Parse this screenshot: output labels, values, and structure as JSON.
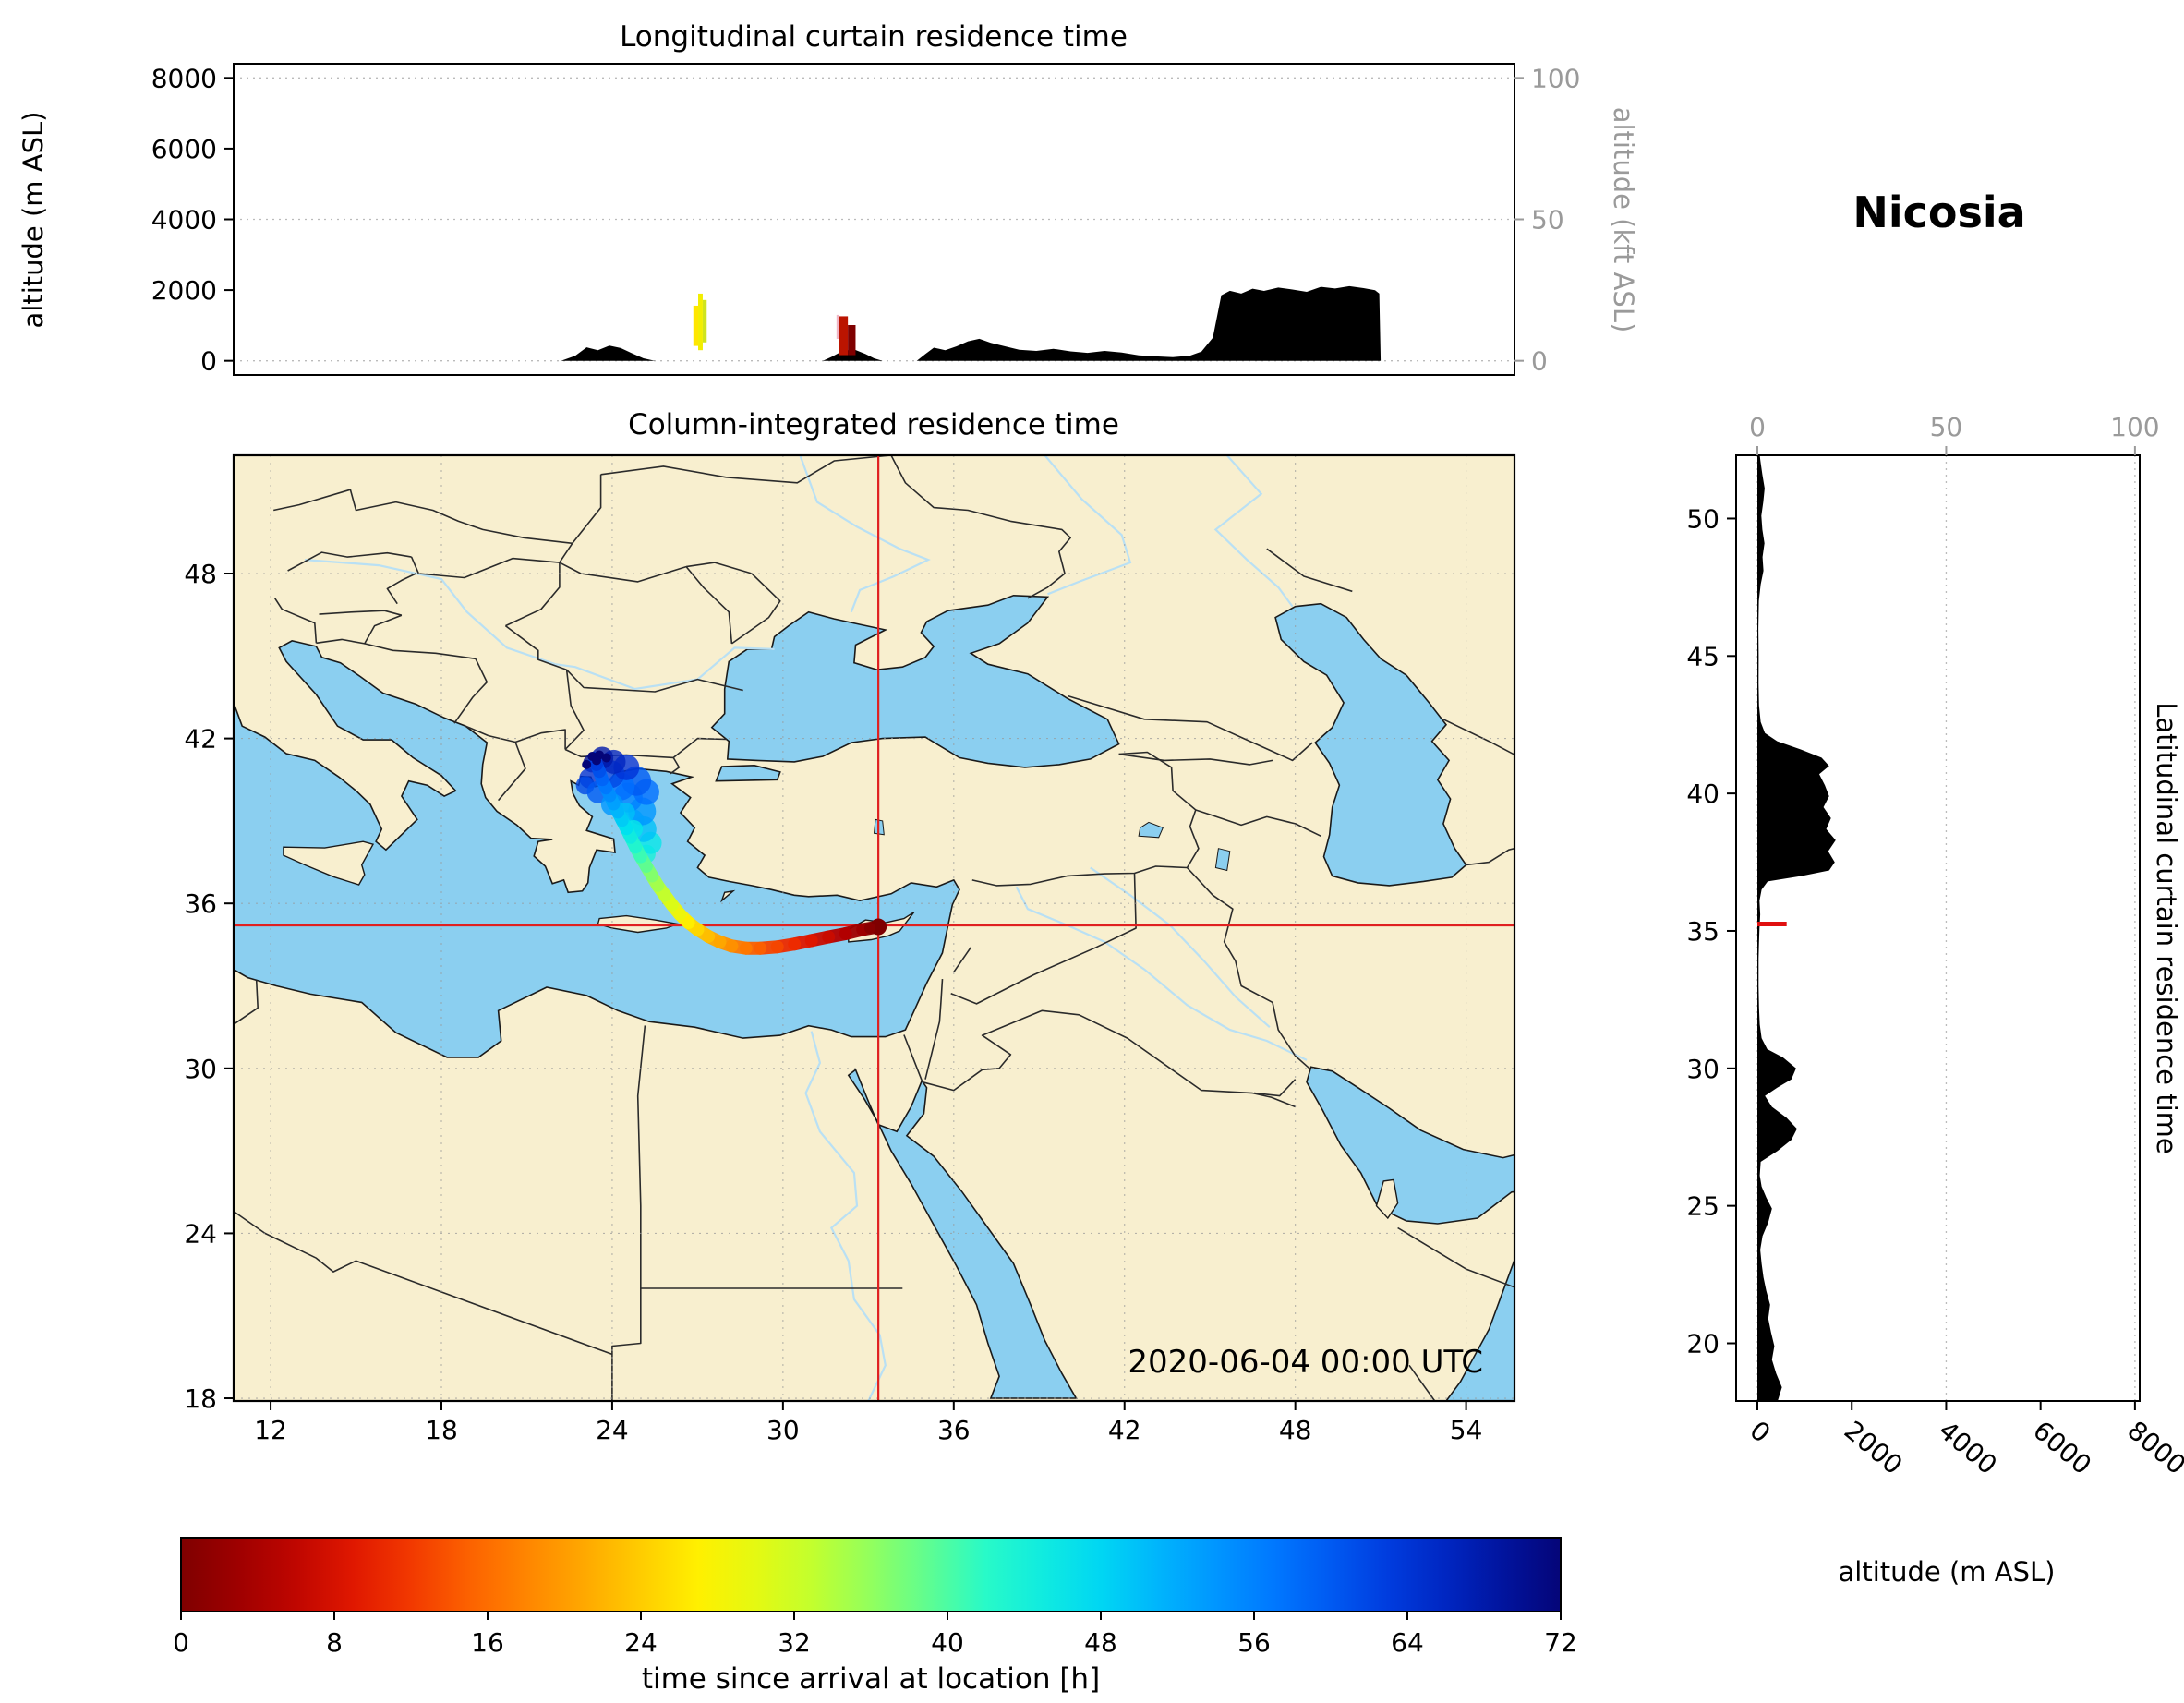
{
  "station": {
    "name": "Nicosia"
  },
  "datetime_label": "2020-06-04 00:00 UTC",
  "panels": {
    "longitudinal": {
      "title": "Longitudinal curtain residence time",
      "ylabel_left": "altitude (m ASL)",
      "ylabel_right": "altitude (kft ASL)",
      "yticks_left": [
        0,
        2000,
        4000,
        6000,
        8000
      ],
      "yticks_right": [
        0,
        50,
        100
      ]
    },
    "map": {
      "title": "Column-integrated residence time",
      "xticks": [
        12,
        18,
        24,
        30,
        36,
        42,
        48,
        54
      ],
      "yticks": [
        18,
        24,
        30,
        36,
        42,
        48
      ],
      "extent": {
        "lon": [
          10.7,
          55.7
        ],
        "lat": [
          17.9,
          52.3
        ]
      }
    },
    "latitudinal": {
      "title": "Latitudinal curtain residence time",
      "xlabel": "altitude (m ASL)",
      "xticks_bottom": [
        0,
        2000,
        4000,
        6000,
        8000
      ],
      "xticks_top": [
        0,
        50,
        100
      ],
      "yticks": [
        20,
        25,
        30,
        35,
        40,
        45,
        50
      ]
    },
    "colorbar": {
      "label": "time since arrival at location [h]",
      "ticks": [
        0,
        8,
        16,
        24,
        32,
        40,
        48,
        56,
        64,
        72
      ],
      "min": 0,
      "max": 72
    }
  },
  "chart_data": [
    {
      "name": "colormap",
      "type": "colorbar",
      "min": 0,
      "max": 72,
      "stops": [
        [
          0,
          127,
          0,
          0
        ],
        [
          5,
          180,
          0,
          0
        ],
        [
          10,
          235,
          30,
          0
        ],
        [
          16,
          255,
          110,
          0
        ],
        [
          22,
          255,
          180,
          0
        ],
        [
          27,
          255,
          240,
          0
        ],
        [
          32,
          210,
          255,
          30
        ],
        [
          37,
          130,
          255,
          110
        ],
        [
          42,
          40,
          250,
          200
        ],
        [
          47,
          0,
          225,
          240
        ],
        [
          52,
          0,
          170,
          255
        ],
        [
          58,
          0,
          110,
          255
        ],
        [
          64,
          0,
          50,
          215
        ],
        [
          68,
          0,
          25,
          170
        ],
        [
          72,
          5,
          5,
          120
        ]
      ]
    },
    {
      "name": "trajectory",
      "type": "scatter",
      "x": "longitude_deg",
      "y": "latitude_deg",
      "value": "time_since_arrival_h",
      "points": [
        [
          33.35,
          35.15,
          0
        ],
        [
          32.8,
          35.05,
          2
        ],
        [
          32.2,
          34.9,
          4
        ],
        [
          31.6,
          34.78,
          6
        ],
        [
          31.0,
          34.65,
          8
        ],
        [
          30.4,
          34.52,
          10
        ],
        [
          29.8,
          34.42,
          12
        ],
        [
          29.2,
          34.37,
          14
        ],
        [
          28.7,
          34.37,
          16
        ],
        [
          28.2,
          34.45,
          18
        ],
        [
          27.78,
          34.6,
          20
        ],
        [
          27.38,
          34.8,
          22
        ],
        [
          27.0,
          35.05,
          24
        ],
        [
          26.68,
          35.3,
          26
        ],
        [
          26.38,
          35.6,
          28
        ],
        [
          26.1,
          35.95,
          30
        ],
        [
          25.85,
          36.3,
          32
        ],
        [
          25.6,
          36.65,
          34
        ],
        [
          25.4,
          37.0,
          36
        ],
        [
          25.2,
          37.35,
          38
        ],
        [
          25.0,
          37.7,
          40
        ],
        [
          24.82,
          38.05,
          42
        ],
        [
          24.65,
          38.4,
          44
        ],
        [
          24.5,
          38.72,
          46
        ],
        [
          24.35,
          39.02,
          48
        ],
        [
          24.2,
          39.32,
          50
        ],
        [
          24.05,
          39.62,
          52
        ],
        [
          23.92,
          39.92,
          54
        ],
        [
          23.78,
          40.2,
          56
        ],
        [
          23.65,
          40.5,
          58
        ],
        [
          23.55,
          40.8,
          60
        ],
        [
          23.45,
          41.05,
          62
        ],
        [
          23.38,
          41.28,
          64
        ]
      ],
      "spread": [
        [
          25.2,
          37.8,
          44,
          10
        ],
        [
          25.35,
          38.2,
          46,
          12
        ],
        [
          25.1,
          38.7,
          50,
          14
        ],
        [
          24.7,
          39.0,
          50,
          13
        ],
        [
          25.05,
          39.35,
          54,
          15
        ],
        [
          24.55,
          39.85,
          56,
          16
        ],
        [
          25.2,
          40.05,
          58,
          14
        ],
        [
          24.85,
          40.45,
          60,
          16
        ],
        [
          24.3,
          40.25,
          58,
          15
        ],
        [
          23.95,
          40.7,
          62,
          15
        ],
        [
          24.5,
          40.95,
          64,
          14
        ],
        [
          24.05,
          41.15,
          66,
          13
        ],
        [
          23.65,
          41.3,
          68,
          12
        ],
        [
          23.3,
          41.1,
          70,
          10
        ],
        [
          23.2,
          40.55,
          64,
          11
        ],
        [
          23.05,
          40.3,
          62,
          10
        ],
        [
          23.5,
          40.05,
          60,
          12
        ],
        [
          24.0,
          39.6,
          54,
          12
        ],
        [
          24.45,
          39.3,
          50,
          11
        ],
        [
          24.75,
          38.7,
          46,
          10
        ]
      ],
      "extra_dots": [
        [
          23.3,
          41.35
        ],
        [
          23.55,
          41.4
        ],
        [
          23.1,
          41.05
        ],
        [
          23.8,
          41.3
        ],
        [
          23.45,
          41.2
        ]
      ],
      "crosshair": {
        "lon": 33.35,
        "lat": 35.2,
        "color": "#e02020"
      }
    },
    {
      "name": "longitudinal_curtain",
      "type": "area",
      "xlabel": "longitude_deg",
      "ylabel": "altitude_m",
      "xlim": [
        10.7,
        55.7
      ],
      "ylim": [
        -400,
        8400
      ],
      "profile": [
        [
          10.7,
          0
        ],
        [
          22.2,
          0
        ],
        [
          22.7,
          140
        ],
        [
          23.1,
          380
        ],
        [
          23.5,
          300
        ],
        [
          23.9,
          430
        ],
        [
          24.3,
          360
        ],
        [
          24.7,
          210
        ],
        [
          25.1,
          70
        ],
        [
          25.5,
          0
        ],
        [
          31.4,
          0
        ],
        [
          31.7,
          110
        ],
        [
          32.1,
          280
        ],
        [
          32.5,
          320
        ],
        [
          32.9,
          190
        ],
        [
          33.2,
          70
        ],
        [
          33.5,
          0
        ],
        [
          34.7,
          0
        ],
        [
          35.0,
          190
        ],
        [
          35.3,
          370
        ],
        [
          35.7,
          300
        ],
        [
          36.1,
          410
        ],
        [
          36.5,
          550
        ],
        [
          36.9,
          620
        ],
        [
          37.3,
          510
        ],
        [
          37.7,
          430
        ],
        [
          38.3,
          310
        ],
        [
          38.9,
          280
        ],
        [
          39.5,
          340
        ],
        [
          40.1,
          265
        ],
        [
          40.7,
          225
        ],
        [
          41.3,
          280
        ],
        [
          41.9,
          235
        ],
        [
          42.5,
          155
        ],
        [
          43.1,
          125
        ],
        [
          43.7,
          105
        ],
        [
          44.3,
          145
        ],
        [
          44.7,
          260
        ],
        [
          45.1,
          650
        ],
        [
          45.4,
          1850
        ],
        [
          45.7,
          1980
        ],
        [
          46.1,
          1900
        ],
        [
          46.5,
          2040
        ],
        [
          46.9,
          1975
        ],
        [
          47.4,
          2070
        ],
        [
          47.9,
          2015
        ],
        [
          48.4,
          1950
        ],
        [
          48.9,
          2090
        ],
        [
          49.4,
          2045
        ],
        [
          49.9,
          2110
        ],
        [
          50.4,
          2055
        ],
        [
          50.8,
          1995
        ],
        [
          50.95,
          1900
        ],
        [
          51.0,
          0
        ],
        [
          55.7,
          0
        ]
      ],
      "patch_strips": [
        {
          "x": [
            26.85,
            27.02
          ],
          "alt": [
            420,
            1560
          ],
          "color": "#ffe600"
        },
        {
          "x": [
            27.02,
            27.18
          ],
          "alt": [
            300,
            1900
          ],
          "color": "#f2ee00"
        },
        {
          "x": [
            27.18,
            27.32
          ],
          "alt": [
            520,
            1720
          ],
          "color": "#cfe41e"
        },
        {
          "x": [
            31.88,
            31.98
          ],
          "alt": [
            620,
            1300
          ],
          "color": "#f0b6c6"
        },
        {
          "x": [
            31.98,
            32.28
          ],
          "alt": [
            160,
            1260
          ],
          "color": "#bb1400"
        },
        {
          "x": [
            32.28,
            32.55
          ],
          "alt": [
            160,
            1010
          ],
          "color": "#7f0000"
        }
      ]
    },
    {
      "name": "latitudinal_curtain",
      "type": "area",
      "xlabel": "altitude_m",
      "ylabel": "latitude_deg",
      "xlim": [
        -450,
        8100
      ],
      "ylim": [
        17.9,
        52.3
      ],
      "profile": [
        [
          17.9,
          430
        ],
        [
          18.4,
          520
        ],
        [
          18.9,
          400
        ],
        [
          19.4,
          310
        ],
        [
          19.9,
          360
        ],
        [
          20.4,
          290
        ],
        [
          20.9,
          230
        ],
        [
          21.4,
          270
        ],
        [
          21.9,
          190
        ],
        [
          22.4,
          130
        ],
        [
          22.9,
          90
        ],
        [
          23.4,
          60
        ],
        [
          23.9,
          110
        ],
        [
          24.4,
          230
        ],
        [
          24.9,
          310
        ],
        [
          25.3,
          190
        ],
        [
          25.7,
          90
        ],
        [
          26.1,
          50
        ],
        [
          26.6,
          70
        ],
        [
          27.0,
          430
        ],
        [
          27.4,
          720
        ],
        [
          27.8,
          840
        ],
        [
          28.2,
          620
        ],
        [
          28.6,
          310
        ],
        [
          29.0,
          160
        ],
        [
          29.3,
          420
        ],
        [
          29.6,
          720
        ],
        [
          30.0,
          820
        ],
        [
          30.4,
          540
        ],
        [
          30.7,
          210
        ],
        [
          31.1,
          90
        ],
        [
          31.6,
          50
        ],
        [
          32.2,
          35
        ],
        [
          33.0,
          25
        ],
        [
          34.0,
          25
        ],
        [
          34.6,
          35
        ],
        [
          35.1,
          45
        ],
        [
          35.6,
          60
        ],
        [
          36.1,
          45
        ],
        [
          36.5,
          90
        ],
        [
          36.8,
          220
        ],
        [
          37.0,
          950
        ],
        [
          37.2,
          1520
        ],
        [
          37.5,
          1640
        ],
        [
          37.9,
          1500
        ],
        [
          38.3,
          1660
        ],
        [
          38.7,
          1460
        ],
        [
          39.1,
          1560
        ],
        [
          39.5,
          1400
        ],
        [
          39.9,
          1520
        ],
        [
          40.3,
          1430
        ],
        [
          40.7,
          1310
        ],
        [
          41.0,
          1520
        ],
        [
          41.3,
          1360
        ],
        [
          41.6,
          920
        ],
        [
          41.9,
          420
        ],
        [
          42.2,
          160
        ],
        [
          42.6,
          70
        ],
        [
          43.2,
          35
        ],
        [
          44.0,
          25
        ],
        [
          45.0,
          28
        ],
        [
          46.0,
          22
        ],
        [
          47.0,
          32
        ],
        [
          47.6,
          70
        ],
        [
          48.1,
          130
        ],
        [
          48.6,
          110
        ],
        [
          49.1,
          150
        ],
        [
          49.6,
          105
        ],
        [
          50.1,
          85
        ],
        [
          50.6,
          125
        ],
        [
          51.1,
          155
        ],
        [
          51.6,
          105
        ],
        [
          52.1,
          65
        ],
        [
          52.3,
          50
        ]
      ],
      "marker": {
        "lat": 35.25,
        "alt_max": 620,
        "color": "#e01010"
      }
    }
  ]
}
